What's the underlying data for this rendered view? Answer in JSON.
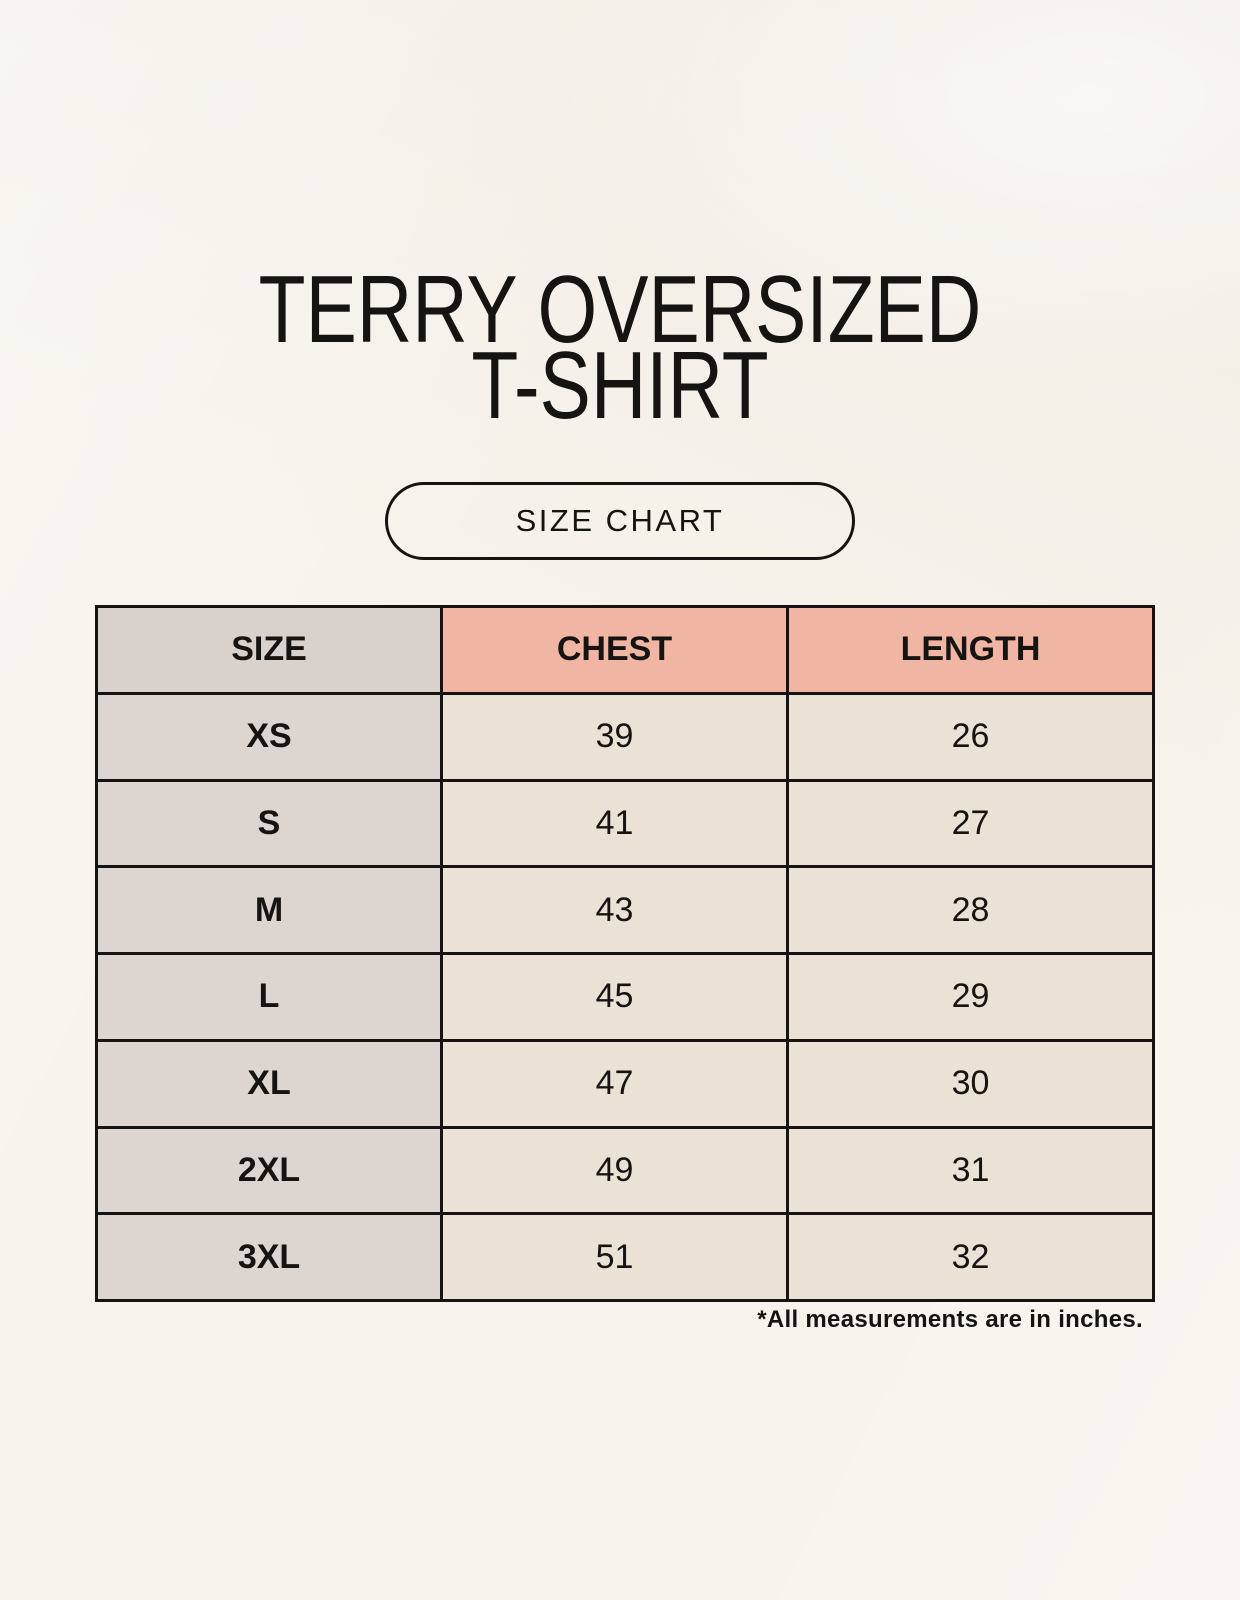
{
  "header": {
    "title_line1": "TERRY OVERSIZED",
    "title_line2": "T-SHIRT",
    "size_chart_label": "SIZE CHART"
  },
  "table": {
    "columns": [
      "SIZE",
      "CHEST",
      "LENGTH"
    ],
    "rows": [
      {
        "size": "XS",
        "chest": "39",
        "length": "26"
      },
      {
        "size": "S",
        "chest": "41",
        "length": "27"
      },
      {
        "size": "M",
        "chest": "43",
        "length": "28"
      },
      {
        "size": "L",
        "chest": "45",
        "length": "29"
      },
      {
        "size": "XL",
        "chest": "47",
        "length": "30"
      },
      {
        "size": "2XL",
        "chest": "49",
        "length": "31"
      },
      {
        "size": "3XL",
        "chest": "51",
        "length": "32"
      }
    ]
  },
  "footnote": "*All measurements are in inches.",
  "colors": {
    "background": "#f7f3ec",
    "header_size_bg": "#d9d2cc",
    "header_accent_bg": "#f0b5a3",
    "size_column_bg": "#dcd5d0",
    "data_cell_bg": "#eae2d5",
    "border_and_text": "#161413"
  },
  "chart_data": {
    "type": "table",
    "title": "TERRY OVERSIZED T-SHIRT",
    "subtitle": "SIZE CHART",
    "columns": [
      "SIZE",
      "CHEST",
      "LENGTH"
    ],
    "rows": [
      [
        "XS",
        39,
        26
      ],
      [
        "S",
        41,
        27
      ],
      [
        "M",
        43,
        28
      ],
      [
        "L",
        45,
        29
      ],
      [
        "XL",
        47,
        30
      ],
      [
        "2XL",
        49,
        31
      ],
      [
        "3XL",
        51,
        32
      ]
    ],
    "units": "inches",
    "note": "*All measurements are in inches."
  }
}
